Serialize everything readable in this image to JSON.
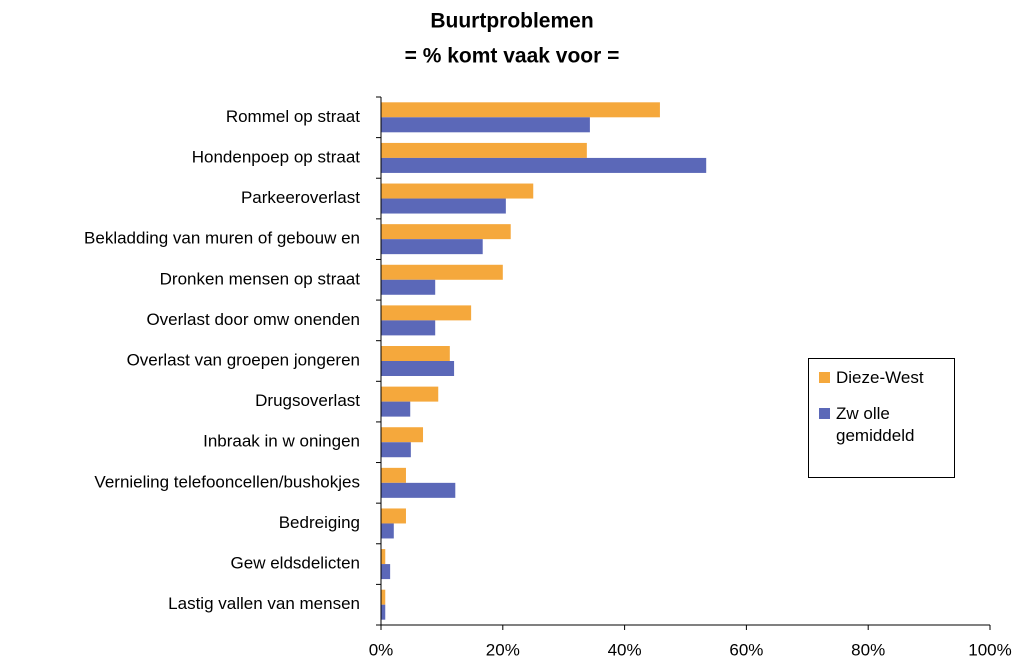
{
  "chart_data": {
    "type": "barh",
    "title": "Buurtproblemen",
    "subtitle": "= % komt vaak voor =",
    "categories": [
      "Rommel op straat",
      "Hondenpoep op straat",
      "Parkeeroverlast",
      "Bekladding van muren of gebouw en",
      "Dronken mensen op straat",
      "Overlast door omw onenden",
      "Overlast van groepen jongeren",
      "Drugsoverlast",
      "Inbraak in w oningen",
      "Vernieling telefooncellen/bushokjes",
      "Bedreiging",
      "Gew eldsdelicten",
      "Lastig vallen van mensen"
    ],
    "series": [
      {
        "name": "Dieze-West",
        "color": "#f5a83c",
        "values": [
          45.8,
          33.8,
          25,
          21.3,
          20,
          14.8,
          11.3,
          9.4,
          6.9,
          4.1,
          4.1,
          0.7,
          0.7
        ]
      },
      {
        "name": "Zw olle gemiddeld",
        "color": "#5b68b8",
        "values": [
          34.3,
          53.4,
          20.5,
          16.7,
          8.9,
          8.9,
          12,
          4.8,
          4.9,
          12.2,
          2.1,
          1.5,
          0.7
        ]
      }
    ],
    "xlim": [
      0,
      100
    ],
    "xticks": [
      {
        "value": 0,
        "label": "0%"
      },
      {
        "value": 20,
        "label": "20%"
      },
      {
        "value": 40,
        "label": "40%"
      },
      {
        "value": 60,
        "label": "60%"
      },
      {
        "value": 80,
        "label": "80%"
      },
      {
        "value": 100,
        "label": "100%"
      }
    ],
    "legend": "right"
  }
}
